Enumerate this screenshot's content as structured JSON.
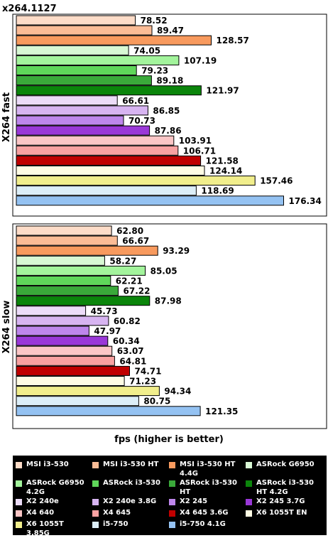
{
  "chart_data": {
    "type": "bar",
    "orientation": "horizontal",
    "title": "x264.1127",
    "xlabel": "fps (higher is better)",
    "groups": [
      {
        "name": "X264 fast",
        "values": [
          78.52,
          89.47,
          128.57,
          74.05,
          107.19,
          79.23,
          89.18,
          121.97,
          66.61,
          86.85,
          70.73,
          87.86,
          103.91,
          106.71,
          121.58,
          124.14,
          157.46,
          118.69,
          176.34
        ],
        "value_labels": [
          "78.52",
          "89.47",
          "128.57",
          "74.05",
          "107.19",
          "79.23",
          "89.18",
          "121.97",
          "66.61",
          "86.85",
          "70.73",
          "87.86",
          "103.91",
          "106.71",
          "121.58",
          "124.14",
          "157.46",
          "118.69",
          "176.34"
        ]
      },
      {
        "name": "X264 slow",
        "values": [
          62.8,
          66.67,
          93.29,
          58.27,
          85.05,
          62.21,
          67.22,
          87.98,
          45.73,
          60.82,
          47.97,
          60.34,
          63.07,
          64.81,
          74.71,
          71.23,
          94.34,
          80.75,
          121.35
        ],
        "value_labels": [
          "62.80",
          "66.67",
          "93.29",
          "58.27",
          "85.05",
          "62.21",
          "67.22",
          "87.98",
          "45.73",
          "60.82",
          "47.97",
          "60.34",
          "63.07",
          "64.81",
          "74.71",
          "71.23",
          "94.34",
          "80.75",
          "121.35"
        ]
      }
    ],
    "legend_position": "bottom",
    "series": [
      {
        "name": "MSI i3-530",
        "color": "#FDDCC8"
      },
      {
        "name": "MSI i3-530 HT",
        "color": "#FBBC96"
      },
      {
        "name": "MSI i3-530 HT 4.4G",
        "color": "#F89A5E"
      },
      {
        "name": "ASRock G6950",
        "color": "#D8F8D4"
      },
      {
        "name": "ASRock G6950 4.2G",
        "color": "#A3F49C"
      },
      {
        "name": "ASRock i3-530",
        "color": "#5FD65A"
      },
      {
        "name": "ASRock i3-530 HT",
        "color": "#3AA93A"
      },
      {
        "name": "ASRock i3-530 HT 4.2G",
        "color": "#0B850B"
      },
      {
        "name": "X2 240e",
        "color": "#ECDCF8"
      },
      {
        "name": "X2 240e 3.8G",
        "color": "#D7B4F1"
      },
      {
        "name": "X2 245",
        "color": "#BE86EC"
      },
      {
        "name": "X2 245 3.7G",
        "color": "#9A38D8"
      },
      {
        "name": "X4 640",
        "color": "#FBC6C6"
      },
      {
        "name": "X4 645",
        "color": "#F8A1A1"
      },
      {
        "name": "X4 645 3.6G",
        "color": "#C00000"
      },
      {
        "name": "X6 1055T EN",
        "color": "#FFFCE4"
      },
      {
        "name": "X6 1055T 3.85G",
        "color": "#F1EE8C"
      },
      {
        "name": "i5-750",
        "color": "#DCEEF8"
      },
      {
        "name": "i5-750 4.1G",
        "color": "#94C2F2"
      }
    ]
  }
}
